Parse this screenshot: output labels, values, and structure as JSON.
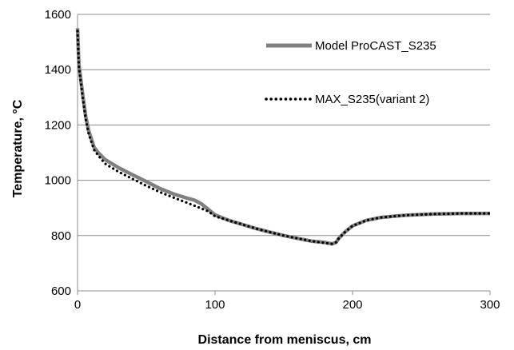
{
  "chart_data": {
    "type": "line",
    "title": "",
    "xlabel": "Distance from meniscus, cm",
    "ylabel": "Temperature, °C",
    "xlim": [
      0,
      300
    ],
    "ylim": [
      600,
      1600
    ],
    "xticks": [
      0,
      100,
      200,
      300
    ],
    "yticks": [
      600,
      800,
      1000,
      1200,
      1400,
      1600
    ],
    "grid": "horizontal",
    "legend_position": "top-right",
    "series": [
      {
        "name": "Model ProCAST_S235",
        "style": "solid",
        "color": "#808080",
        "x": [
          0,
          1,
          2,
          4,
          6,
          8,
          10,
          12,
          15,
          20,
          30,
          40,
          50,
          60,
          70,
          80,
          85,
          90,
          95,
          100,
          110,
          120,
          130,
          140,
          150,
          160,
          170,
          180,
          185,
          188,
          190,
          195,
          200,
          210,
          220,
          230,
          240,
          250,
          260,
          270,
          280,
          290,
          300
        ],
        "y": [
          1550,
          1420,
          1380,
          1300,
          1230,
          1180,
          1150,
          1120,
          1100,
          1075,
          1045,
          1020,
          995,
          970,
          950,
          935,
          928,
          915,
          895,
          875,
          855,
          840,
          825,
          812,
          800,
          790,
          780,
          775,
          770,
          775,
          790,
          815,
          835,
          855,
          865,
          870,
          874,
          876,
          878,
          879,
          880,
          880,
          880
        ]
      },
      {
        "name": "MAX_S235(variant 2)",
        "style": "dotted",
        "color": "#000000",
        "x": [
          0,
          1,
          2,
          4,
          6,
          8,
          10,
          12,
          15,
          20,
          30,
          40,
          50,
          60,
          70,
          80,
          85,
          90,
          95,
          100,
          110,
          120,
          130,
          140,
          150,
          160,
          170,
          180,
          185,
          188,
          190,
          195,
          200,
          210,
          220,
          230,
          240,
          250,
          260,
          270,
          280,
          290,
          300
        ],
        "y": [
          1540,
          1410,
          1370,
          1290,
          1220,
          1170,
          1140,
          1110,
          1090,
          1060,
          1030,
          1005,
          980,
          957,
          937,
          918,
          908,
          898,
          888,
          870,
          855,
          840,
          825,
          812,
          800,
          790,
          780,
          773,
          770,
          776,
          790,
          815,
          835,
          855,
          865,
          870,
          874,
          876,
          878,
          879,
          880,
          880,
          880
        ]
      }
    ]
  }
}
